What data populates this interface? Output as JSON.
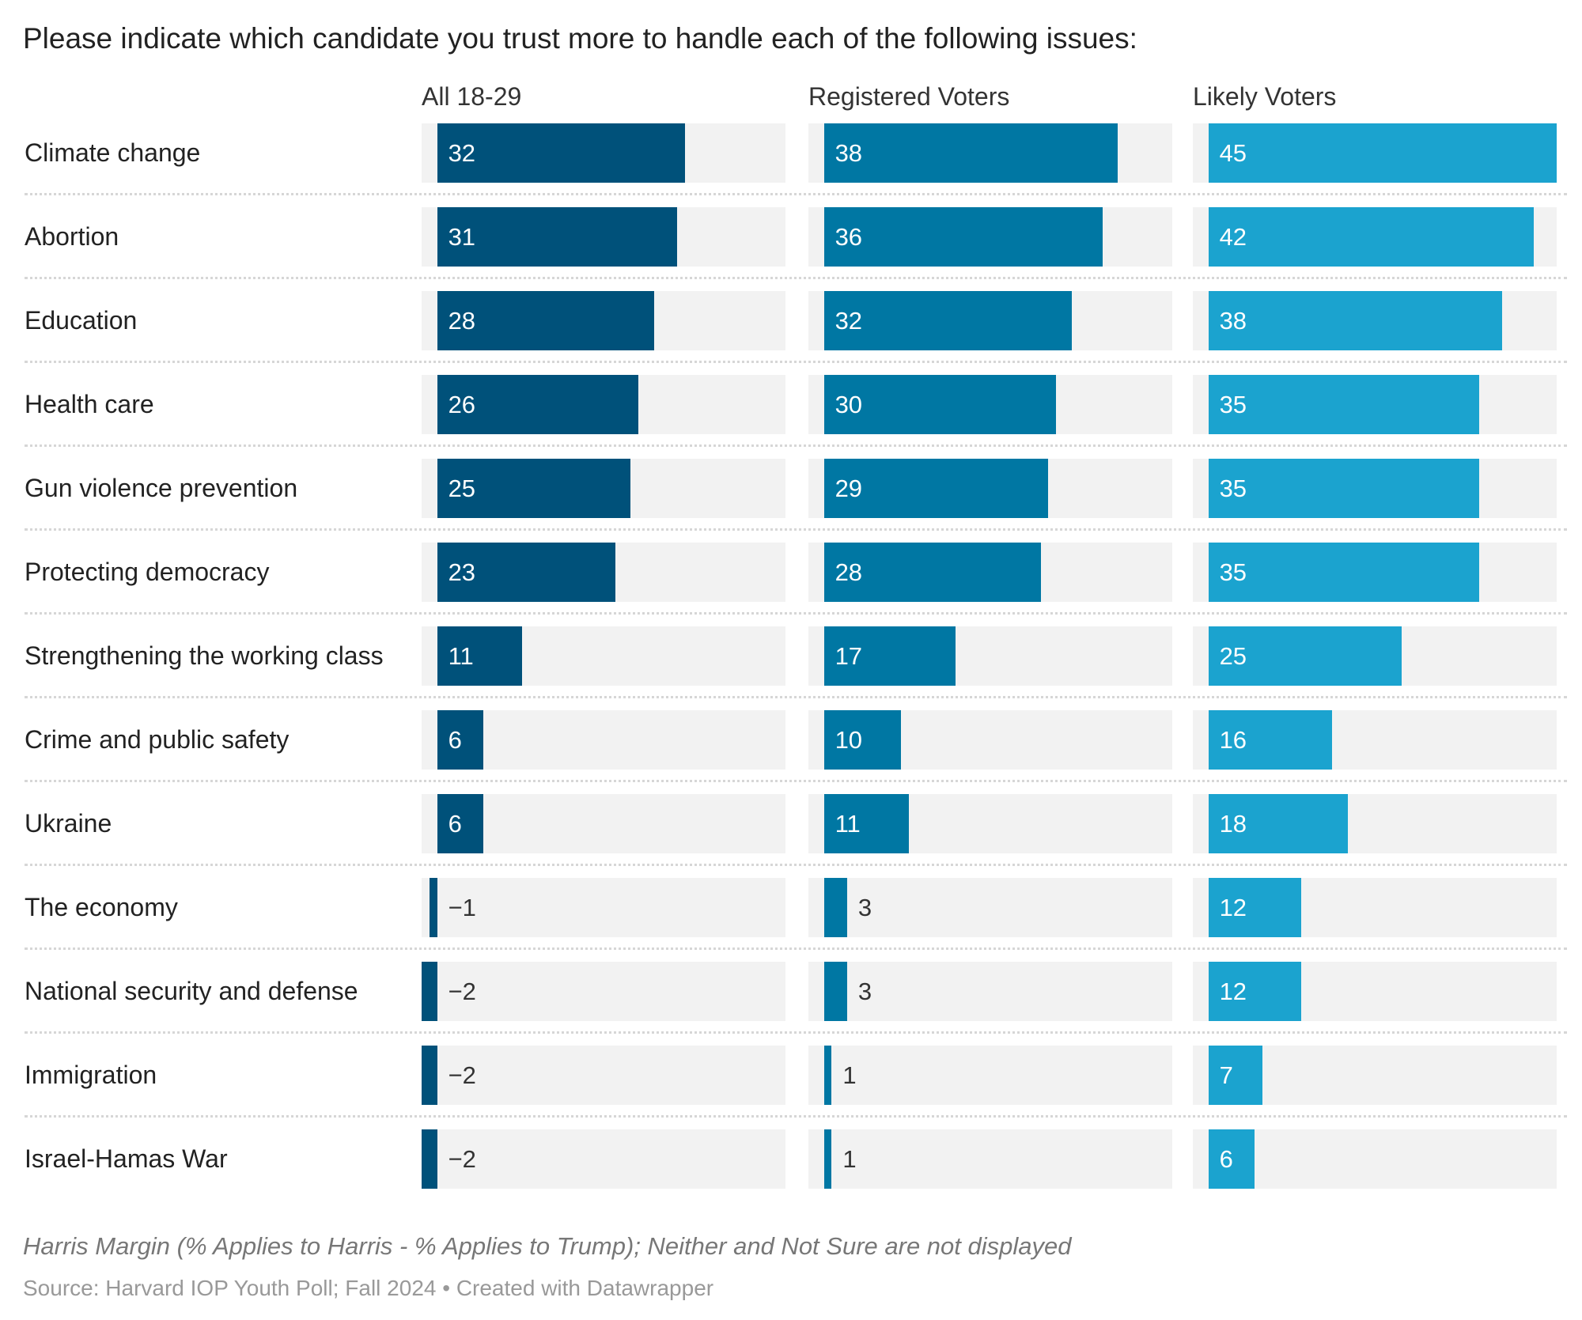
{
  "chart_data": {
    "type": "bar",
    "orientation": "horizontal",
    "title": "Please indicate which candidate you trust more to handle each of the following issues:",
    "categories": [
      "Climate change",
      "Abortion",
      "Education",
      "Health care",
      "Gun violence prevention",
      "Protecting democracy",
      "Strengthening the working class",
      "Crime and public safety",
      "Ukraine",
      "The economy",
      "National security and defense",
      "Immigration",
      "Israel-Hamas War"
    ],
    "series": [
      {
        "name": "All 18-29",
        "color": "#00517a",
        "values": [
          32,
          31,
          28,
          26,
          25,
          23,
          11,
          6,
          6,
          -1,
          -2,
          -2,
          -2
        ]
      },
      {
        "name": "Registered Voters",
        "color": "#0077a3",
        "values": [
          38,
          36,
          32,
          30,
          29,
          28,
          17,
          10,
          11,
          3,
          3,
          1,
          1
        ]
      },
      {
        "name": "Likely Voters",
        "color": "#1ba3cf",
        "values": [
          45,
          42,
          38,
          35,
          35,
          35,
          25,
          16,
          18,
          12,
          12,
          7,
          6
        ]
      }
    ],
    "xlim": [
      -2,
      45
    ],
    "background_color": "#f2f2f2",
    "grid": false,
    "note": "Harris Margin (% Applies to Harris - % Applies to Trump); Neither and Not Sure are not displayed",
    "source": "Source: Harvard IOP Youth Poll; Fall 2024 • Created with Datawrapper"
  }
}
